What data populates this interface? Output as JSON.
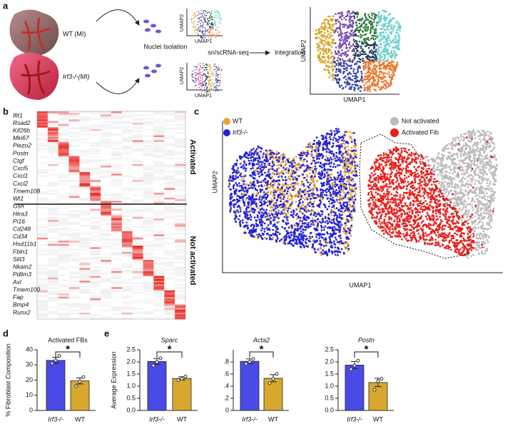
{
  "panel_labels": [
    "a",
    "b",
    "c",
    "d",
    "e"
  ],
  "panel_a": {
    "wt_label": "WT (MI)",
    "ko_label": "Irf3-/-(MI)",
    "nuclei": "Nuclei Isolation",
    "seq": "sn/scRNA-seq",
    "integration": "Integration",
    "umap_x": "UMAP1",
    "umap_y": "UMAP2"
  },
  "panel_b": {
    "genes": [
      "Ifit1",
      "Rsad2",
      "Kif26b",
      "Mki67",
      "Piezo2",
      "Postn",
      "Ctgf",
      "Cxcl5",
      "Cxcl1",
      "Cxcl2",
      "Tmem108",
      "Wt1",
      "Gsn",
      "Htra3",
      "Pi16",
      "Cd248",
      "Cd34",
      "Hsd11b1",
      "Fbln1",
      "Slit3",
      "Nkain2",
      "Pdlim3",
      "Axl",
      "Tmem100",
      "Fap",
      "Bmp4",
      "Runx2"
    ],
    "groups": [
      "Activated",
      "Not activated"
    ]
  },
  "panel_c": {
    "legend_left": [
      "WT",
      "Irf3-/-"
    ],
    "legend_right": [
      "Not activated",
      "Activated Fib"
    ],
    "x_label": "UMAP1",
    "y_label": "UMAP2"
  },
  "chart_data": [
    {
      "type": "bar",
      "title": "Activated FBs",
      "y_label": "% Fibroblast  Composition",
      "categories": [
        "Irf3-/-",
        "WT"
      ],
      "values": [
        33,
        19.5
      ],
      "errors": [
        2,
        2
      ],
      "points": [
        [
          31,
          33,
          36
        ],
        [
          16,
          19,
          22
        ]
      ],
      "colors": [
        "#4a4ae6",
        "#d8a82e"
      ],
      "ylim": [
        0,
        40
      ],
      "yticks": [
        0,
        10,
        20,
        30,
        40
      ],
      "significance": "*"
    },
    {
      "type": "bar",
      "title": "Sparc",
      "y_label": "Average Expression",
      "categories": [
        "Irf3-/-",
        "WT"
      ],
      "values": [
        2.02,
        1.32
      ],
      "errors": [
        0.12,
        0.07
      ],
      "points": [
        [
          1.85,
          2.0,
          2.15
        ],
        [
          1.25,
          1.3,
          1.4
        ]
      ],
      "colors": [
        "#4a4ae6",
        "#d8a82e"
      ],
      "ylim": [
        0,
        2.5
      ],
      "yticks": [
        {
          "value": 0,
          "label": "0.0"
        },
        0.5,
        {
          "value": 1,
          "label": "1.0"
        },
        1.5,
        {
          "value": 2,
          "label": "2.0"
        },
        2.5
      ],
      "significance": "*"
    },
    {
      "type": "bar",
      "title": "Acta2",
      "categories": [
        "Irf3-/-",
        "WT"
      ],
      "values": [
        0.81,
        0.53
      ],
      "errors": [
        0.04,
        0.06
      ],
      "points": [
        [
          0.77,
          0.8,
          0.85
        ],
        [
          0.45,
          0.52,
          0.6
        ]
      ],
      "colors": [
        "#4a4ae6",
        "#d8a82e"
      ],
      "ylim": [
        0,
        1
      ],
      "yticks": [
        0,
        {
          "value": 0.2,
          "label": ".2"
        },
        {
          "value": 0.4,
          "label": ".4"
        },
        {
          "value": 0.6,
          "label": ".6"
        },
        {
          "value": 0.8,
          "label": ".8"
        }
      ],
      "significance": "*"
    },
    {
      "type": "bar",
      "title": "Postn",
      "categories": [
        "Irf3-/-",
        "WT"
      ],
      "values": [
        1.87,
        1.15
      ],
      "errors": [
        0.15,
        0.17
      ],
      "points": [
        [
          1.7,
          1.85,
          2.05
        ],
        [
          0.85,
          1.2,
          1.3
        ]
      ],
      "colors": [
        "#4a4ae6",
        "#d8a82e"
      ],
      "ylim": [
        0,
        2.5
      ],
      "yticks": [
        {
          "value": 0,
          "label": "0.0"
        },
        0.5,
        {
          "value": 1,
          "label": "1.0"
        },
        1.5,
        {
          "value": 2,
          "label": "2.0"
        },
        2.5
      ],
      "significance": "*"
    }
  ]
}
